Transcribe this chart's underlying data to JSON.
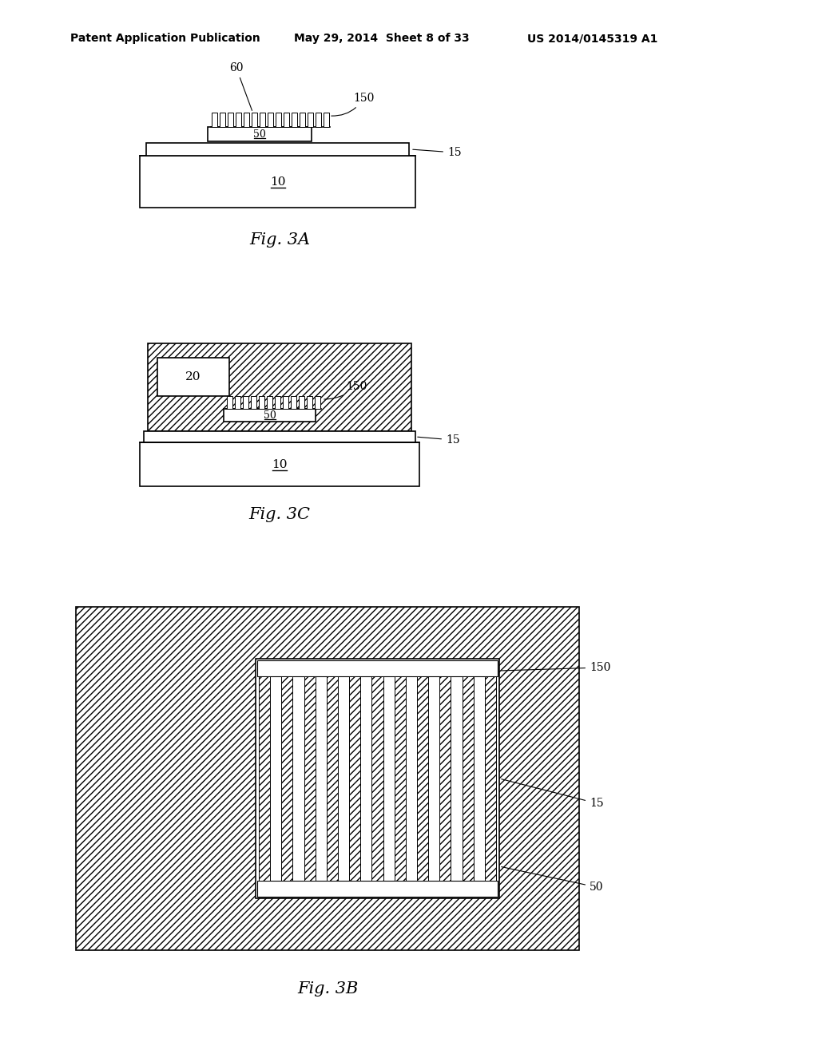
{
  "bg_color": "#ffffff",
  "header_text": "Patent Application Publication",
  "header_date": "May 29, 2014  Sheet 8 of 33",
  "header_patent": "US 2014/0145319 A1",
  "fig3a_label": "Fig. 3A",
  "fig3c_label": "Fig. 3C",
  "fig3b_label": "Fig. 3B",
  "label_10": "10",
  "label_15": "15",
  "label_20": "20",
  "label_50": "50",
  "label_60": "60",
  "label_150": "150",
  "line_color": "#000000"
}
